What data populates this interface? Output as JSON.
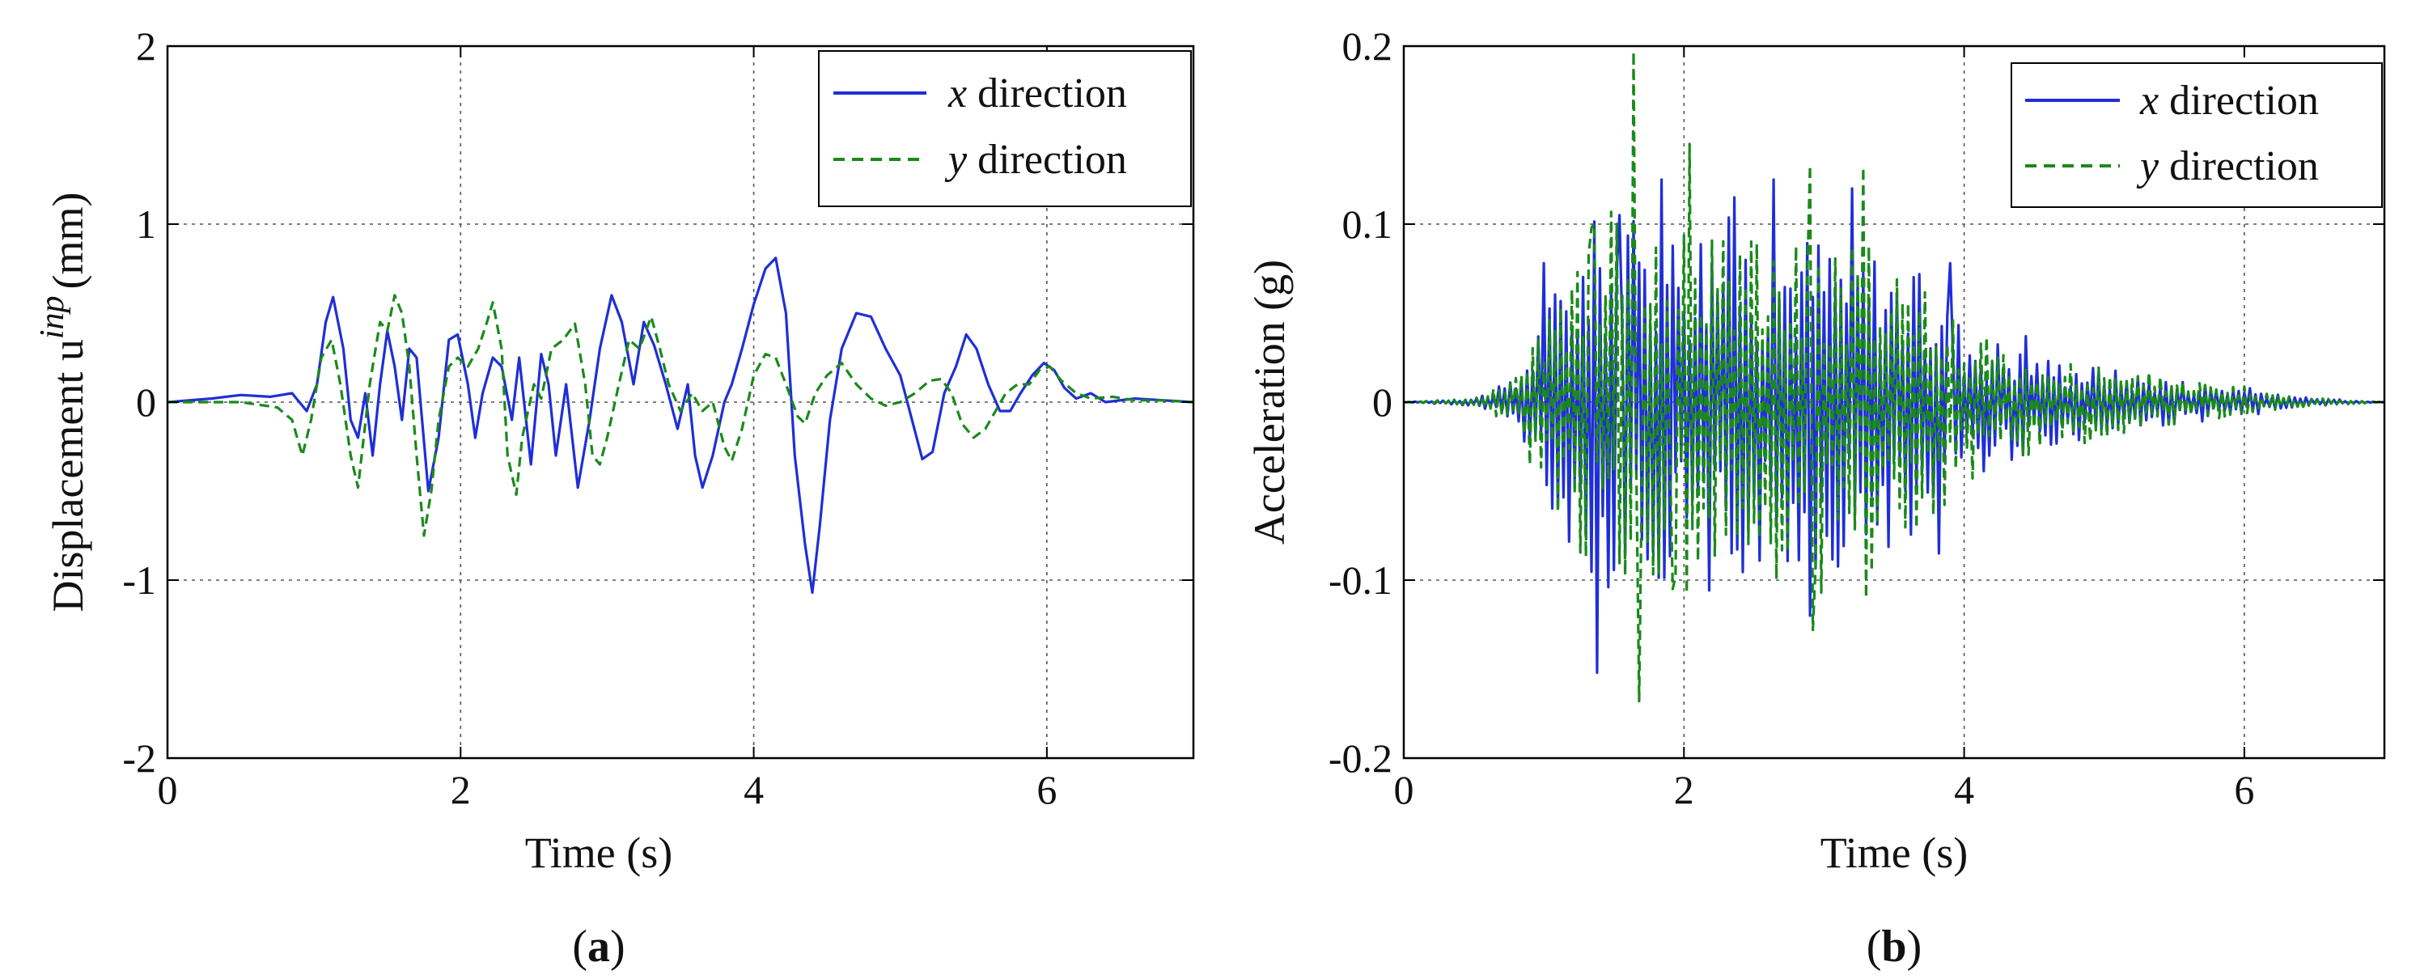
{
  "chart_data": [
    {
      "type": "line",
      "panel_label": "(a)",
      "panel_letter": "a",
      "xlabel": "Time (s)",
      "ylabel": "Displacement u",
      "ylabel_superscript": "inp",
      "ylabel_unit": "(mm)",
      "xlim": [
        0,
        7
      ],
      "ylim": [
        -2,
        2
      ],
      "xticks": [
        0,
        2,
        4,
        6
      ],
      "xtick_labels": [
        "0",
        "2",
        "4",
        "6"
      ],
      "yticks": [
        -2,
        -1,
        0,
        1,
        2
      ],
      "ytick_labels": [
        "-2",
        "-1",
        "0",
        "1",
        "2"
      ],
      "grid": true,
      "legend_position": "top-right",
      "series": [
        {
          "name": "x direction",
          "legend_var": "x",
          "legend_suffix": " direction",
          "color": "#1f2fd6",
          "dash": "solid",
          "points": [
            [
              0,
              0
            ],
            [
              0.3,
              0.02
            ],
            [
              0.5,
              0.04
            ],
            [
              0.7,
              0.03
            ],
            [
              0.85,
              0.05
            ],
            [
              0.95,
              -0.05
            ],
            [
              1.02,
              0.1
            ],
            [
              1.08,
              0.45
            ],
            [
              1.13,
              0.59
            ],
            [
              1.2,
              0.3
            ],
            [
              1.25,
              -0.1
            ],
            [
              1.3,
              -0.2
            ],
            [
              1.35,
              0.05
            ],
            [
              1.4,
              -0.3
            ],
            [
              1.45,
              0.1
            ],
            [
              1.5,
              0.4
            ],
            [
              1.55,
              0.2
            ],
            [
              1.6,
              -0.1
            ],
            [
              1.65,
              0.3
            ],
            [
              1.7,
              0.25
            ],
            [
              1.78,
              -0.5
            ],
            [
              1.85,
              -0.2
            ],
            [
              1.92,
              0.35
            ],
            [
              1.98,
              0.38
            ],
            [
              2.05,
              0.1
            ],
            [
              2.1,
              -0.2
            ],
            [
              2.15,
              0.05
            ],
            [
              2.22,
              0.25
            ],
            [
              2.28,
              0.2
            ],
            [
              2.35,
              -0.1
            ],
            [
              2.4,
              0.25
            ],
            [
              2.48,
              -0.35
            ],
            [
              2.55,
              0.27
            ],
            [
              2.6,
              0.1
            ],
            [
              2.65,
              -0.3
            ],
            [
              2.72,
              0.1
            ],
            [
              2.8,
              -0.48
            ],
            [
              2.88,
              -0.1
            ],
            [
              2.95,
              0.3
            ],
            [
              3.03,
              0.6
            ],
            [
              3.1,
              0.45
            ],
            [
              3.18,
              0.1
            ],
            [
              3.25,
              0.45
            ],
            [
              3.32,
              0.32
            ],
            [
              3.4,
              0.1
            ],
            [
              3.48,
              -0.15
            ],
            [
              3.55,
              0.1
            ],
            [
              3.6,
              -0.3
            ],
            [
              3.65,
              -0.48
            ],
            [
              3.72,
              -0.3
            ],
            [
              3.8,
              0.0
            ],
            [
              3.85,
              0.1
            ],
            [
              3.92,
              0.3
            ],
            [
              4.0,
              0.55
            ],
            [
              4.08,
              0.75
            ],
            [
              4.15,
              0.81
            ],
            [
              4.22,
              0.5
            ],
            [
              4.28,
              -0.3
            ],
            [
              4.35,
              -0.8
            ],
            [
              4.4,
              -1.07
            ],
            [
              4.45,
              -0.7
            ],
            [
              4.52,
              -0.1
            ],
            [
              4.6,
              0.3
            ],
            [
              4.7,
              0.5
            ],
            [
              4.8,
              0.48
            ],
            [
              4.9,
              0.3
            ],
            [
              5.0,
              0.15
            ],
            [
              5.08,
              -0.1
            ],
            [
              5.15,
              -0.32
            ],
            [
              5.22,
              -0.28
            ],
            [
              5.3,
              0.05
            ],
            [
              5.38,
              0.2
            ],
            [
              5.45,
              0.38
            ],
            [
              5.52,
              0.3
            ],
            [
              5.6,
              0.1
            ],
            [
              5.68,
              -0.05
            ],
            [
              5.75,
              -0.05
            ],
            [
              5.82,
              0.05
            ],
            [
              5.9,
              0.15
            ],
            [
              5.98,
              0.22
            ],
            [
              6.05,
              0.18
            ],
            [
              6.12,
              0.08
            ],
            [
              6.2,
              0.02
            ],
            [
              6.3,
              0.05
            ],
            [
              6.4,
              0.0
            ],
            [
              6.6,
              0.02
            ],
            [
              6.8,
              0.01
            ],
            [
              7.0,
              0.0
            ]
          ]
        },
        {
          "name": "y direction",
          "legend_var": "y",
          "legend_suffix": " direction",
          "color": "#1a8a1a",
          "dash": "dashed",
          "points": [
            [
              0,
              0
            ],
            [
              0.5,
              0.0
            ],
            [
              0.75,
              -0.03
            ],
            [
              0.85,
              -0.1
            ],
            [
              0.92,
              -0.3
            ],
            [
              0.98,
              -0.1
            ],
            [
              1.05,
              0.25
            ],
            [
              1.12,
              0.35
            ],
            [
              1.18,
              0.1
            ],
            [
              1.25,
              -0.3
            ],
            [
              1.3,
              -0.48
            ],
            [
              1.38,
              0.1
            ],
            [
              1.45,
              0.45
            ],
            [
              1.5,
              0.4
            ],
            [
              1.55,
              0.6
            ],
            [
              1.6,
              0.5
            ],
            [
              1.65,
              0.2
            ],
            [
              1.7,
              -0.3
            ],
            [
              1.75,
              -0.75
            ],
            [
              1.8,
              -0.5
            ],
            [
              1.85,
              -0.1
            ],
            [
              1.92,
              0.2
            ],
            [
              1.98,
              0.25
            ],
            [
              2.05,
              0.2
            ],
            [
              2.12,
              0.3
            ],
            [
              2.18,
              0.45
            ],
            [
              2.22,
              0.56
            ],
            [
              2.28,
              0.3
            ],
            [
              2.32,
              -0.3
            ],
            [
              2.38,
              -0.52
            ],
            [
              2.42,
              -0.2
            ],
            [
              2.5,
              0.1
            ],
            [
              2.55,
              0.02
            ],
            [
              2.62,
              0.3
            ],
            [
              2.7,
              0.35
            ],
            [
              2.78,
              0.44
            ],
            [
              2.85,
              0.1
            ],
            [
              2.9,
              -0.3
            ],
            [
              2.95,
              -0.35
            ],
            [
              3.0,
              -0.2
            ],
            [
              3.08,
              0.1
            ],
            [
              3.15,
              0.35
            ],
            [
              3.22,
              0.3
            ],
            [
              3.3,
              0.48
            ],
            [
              3.36,
              0.3
            ],
            [
              3.42,
              0.1
            ],
            [
              3.5,
              -0.05
            ],
            [
              3.58,
              0.05
            ],
            [
              3.65,
              -0.05
            ],
            [
              3.72,
              0.0
            ],
            [
              3.8,
              -0.25
            ],
            [
              3.85,
              -0.33
            ],
            [
              3.92,
              -0.15
            ],
            [
              4.0,
              0.15
            ],
            [
              4.08,
              0.27
            ],
            [
              4.15,
              0.25
            ],
            [
              4.22,
              0.1
            ],
            [
              4.3,
              -0.08
            ],
            [
              4.35,
              -0.12
            ],
            [
              4.42,
              0.05
            ],
            [
              4.5,
              0.15
            ],
            [
              4.6,
              0.22
            ],
            [
              4.7,
              0.1
            ],
            [
              4.8,
              0.02
            ],
            [
              4.9,
              -0.02
            ],
            [
              5.0,
              0.0
            ],
            [
              5.1,
              0.05
            ],
            [
              5.2,
              0.12
            ],
            [
              5.28,
              0.13
            ],
            [
              5.35,
              0.05
            ],
            [
              5.42,
              -0.12
            ],
            [
              5.5,
              -0.2
            ],
            [
              5.58,
              -0.15
            ],
            [
              5.65,
              -0.05
            ],
            [
              5.72,
              0.05
            ],
            [
              5.8,
              0.1
            ],
            [
              5.88,
              0.1
            ],
            [
              5.95,
              0.18
            ],
            [
              6.02,
              0.2
            ],
            [
              6.1,
              0.12
            ],
            [
              6.2,
              0.05
            ],
            [
              6.3,
              0.02
            ],
            [
              6.45,
              0.03
            ],
            [
              6.6,
              0.01
            ],
            [
              6.8,
              0.01
            ],
            [
              7.0,
              0.0
            ]
          ]
        }
      ]
    },
    {
      "type": "line",
      "panel_label": "(b)",
      "panel_letter": "b",
      "xlabel": "Time (s)",
      "ylabel": "Acceleration (g)",
      "xlim": [
        0,
        7
      ],
      "ylim": [
        -0.2,
        0.2
      ],
      "xticks": [
        0,
        2,
        4,
        6
      ],
      "xtick_labels": [
        "0",
        "2",
        "4",
        "6"
      ],
      "yticks": [
        -0.2,
        -0.1,
        0,
        0.1,
        0.2
      ],
      "ytick_labels": [
        "-0.2",
        "-0.1",
        "0",
        "0.1",
        "0.2"
      ],
      "grid": true,
      "legend_position": "top-right",
      "envelope_anchor_times": [
        0,
        0.5,
        0.8,
        1.0,
        1.4,
        1.8,
        2.2,
        2.6,
        3.0,
        3.4,
        3.8,
        4.0,
        4.5,
        5.0,
        5.5,
        6.0,
        6.3,
        7.0
      ],
      "envelope_anchor_amplitudes": [
        0.0,
        0.002,
        0.012,
        0.05,
        0.1,
        0.09,
        0.1,
        0.09,
        0.09,
        0.08,
        0.06,
        0.04,
        0.025,
        0.018,
        0.012,
        0.008,
        0.003,
        0.0
      ],
      "series": [
        {
          "name": "x direction",
          "legend_var": "x",
          "legend_suffix": " direction",
          "color": "#1f2fd6",
          "dash": "solid",
          "sample_interval_s": 0.02,
          "frequency_factor": 1.0,
          "peaks": [
            [
              1.0,
              0.078
            ],
            [
              1.37,
              -0.152
            ],
            [
              1.55,
              0.105
            ],
            [
              1.85,
              0.125
            ],
            [
              2.35,
              0.115
            ],
            [
              2.65,
              0.125
            ],
            [
              2.9,
              -0.12
            ],
            [
              3.2,
              0.12
            ],
            [
              3.82,
              -0.085
            ],
            [
              3.9,
              0.078
            ],
            [
              4.45,
              0.037
            ]
          ]
        },
        {
          "name": "y direction",
          "legend_var": "y",
          "legend_suffix": " direction",
          "color": "#1a8a1a",
          "dash": "dashed",
          "sample_interval_s": 0.02,
          "frequency_factor": 1.3,
          "peaks": [
            [
              1.35,
              0.098
            ],
            [
              1.65,
              0.197
            ],
            [
              1.68,
              -0.168
            ],
            [
              2.05,
              0.145
            ],
            [
              1.92,
              -0.105
            ],
            [
              2.9,
              0.133
            ],
            [
              2.92,
              -0.128
            ],
            [
              3.28,
              0.132
            ],
            [
              3.3,
              -0.11
            ]
          ]
        }
      ]
    }
  ]
}
